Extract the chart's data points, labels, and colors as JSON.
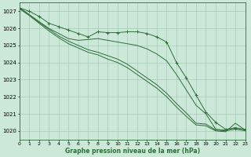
{
  "background_color": "#cce8d8",
  "grid_color": "#aaccbb",
  "line_color": "#2d6e3a",
  "xlabel": "Graphe pression niveau de la mer (hPa)",
  "xlim": [
    0,
    23
  ],
  "ylim": [
    1019.5,
    1027.5
  ],
  "yticks": [
    1020,
    1021,
    1022,
    1023,
    1024,
    1025,
    1026,
    1027
  ],
  "xticks": [
    0,
    1,
    2,
    3,
    4,
    5,
    6,
    7,
    8,
    9,
    10,
    11,
    12,
    13,
    14,
    15,
    16,
    17,
    18,
    19,
    20,
    21,
    22,
    23
  ],
  "series": [
    {
      "x": [
        0,
        1,
        2,
        3,
        4,
        5,
        6,
        7,
        8,
        9,
        10,
        11,
        12,
        13,
        14,
        15,
        16,
        17,
        18,
        19,
        20,
        21,
        22,
        23
      ],
      "y": [
        1027.2,
        1027.0,
        1026.7,
        1026.3,
        1026.1,
        1025.9,
        1025.7,
        1025.5,
        1025.8,
        1025.75,
        1025.75,
        1025.8,
        1025.8,
        1025.7,
        1025.5,
        1025.2,
        1024.0,
        1023.1,
        1022.1,
        1021.1,
        1020.5,
        1020.1,
        1020.15,
        1020.1
      ],
      "marker": true
    },
    {
      "x": [
        0,
        1,
        2,
        3,
        4,
        5,
        6,
        7,
        8,
        9,
        10,
        11,
        12,
        13,
        14,
        15,
        16,
        17,
        18,
        19,
        20,
        21,
        22,
        23
      ],
      "y": [
        1027.2,
        1026.8,
        1026.4,
        1026.0,
        1025.7,
        1025.4,
        1025.3,
        1025.35,
        1025.4,
        1025.3,
        1025.2,
        1025.1,
        1025.0,
        1024.8,
        1024.5,
        1024.1,
        1023.3,
        1022.4,
        1021.5,
        1021.0,
        1020.1,
        1020.05,
        1020.2,
        1020.05
      ],
      "marker": false
    },
    {
      "x": [
        0,
        1,
        2,
        3,
        4,
        5,
        6,
        7,
        8,
        9,
        10,
        11,
        12,
        13,
        14,
        15,
        16,
        17,
        18,
        19,
        20,
        21,
        22,
        23
      ],
      "y": [
        1027.2,
        1026.8,
        1026.35,
        1025.95,
        1025.55,
        1025.25,
        1025.0,
        1024.75,
        1024.6,
        1024.4,
        1024.2,
        1023.9,
        1023.5,
        1023.1,
        1022.7,
        1022.2,
        1021.6,
        1021.05,
        1020.45,
        1020.4,
        1020.05,
        1020.0,
        1020.1,
        1020.0
      ],
      "marker": false
    },
    {
      "x": [
        0,
        1,
        2,
        3,
        4,
        5,
        6,
        7,
        8,
        9,
        10,
        11,
        12,
        13,
        14,
        15,
        16,
        17,
        18,
        19,
        20,
        21,
        22,
        23
      ],
      "y": [
        1027.15,
        1026.75,
        1026.3,
        1025.85,
        1025.45,
        1025.1,
        1024.85,
        1024.6,
        1024.45,
        1024.2,
        1024.0,
        1023.7,
        1023.3,
        1022.9,
        1022.5,
        1022.0,
        1021.4,
        1020.85,
        1020.35,
        1020.3,
        1020.0,
        1019.95,
        1020.45,
        1020.05
      ],
      "marker": false
    }
  ]
}
